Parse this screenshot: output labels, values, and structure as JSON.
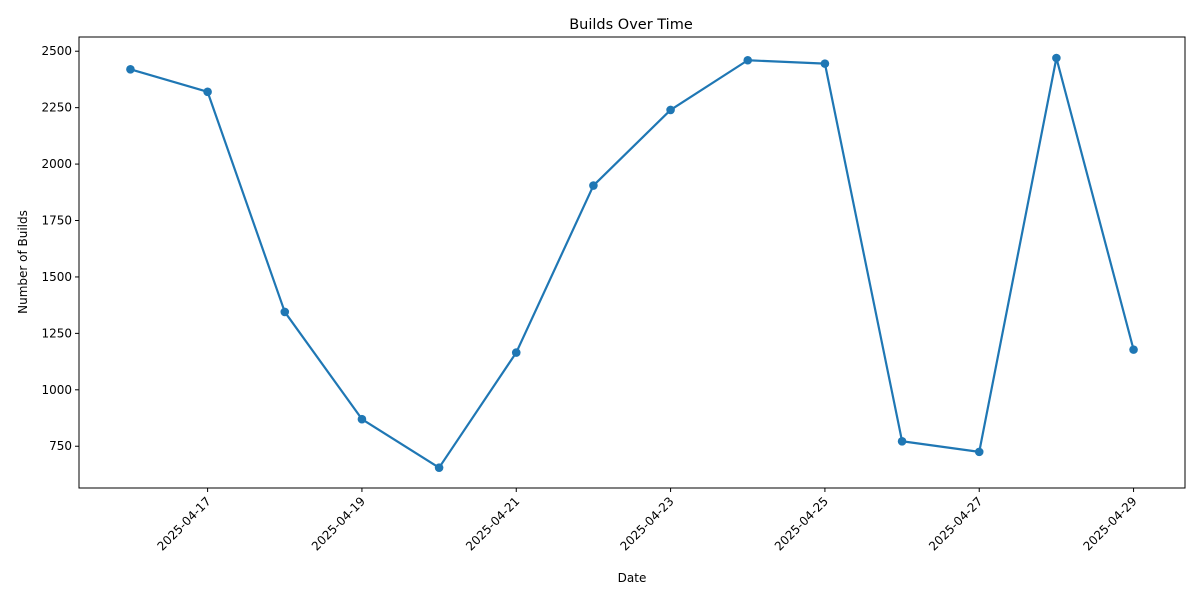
{
  "chart_data": {
    "type": "line",
    "title": "Builds Over Time",
    "xlabel": "Date",
    "ylabel": "Number of Builds",
    "x": [
      "2025-04-16",
      "2025-04-17",
      "2025-04-18",
      "2025-04-19",
      "2025-04-20",
      "2025-04-21",
      "2025-04-22",
      "2025-04-23",
      "2025-04-24",
      "2025-04-25",
      "2025-04-26",
      "2025-04-27",
      "2025-04-28",
      "2025-04-29"
    ],
    "series": [
      {
        "values": [
          2420,
          2320,
          1345,
          870,
          655,
          1165,
          1905,
          2240,
          2460,
          2445,
          772,
          725,
          2470,
          1178
        ]
      }
    ],
    "x_ticks": [
      "2025-04-17",
      "2025-04-19",
      "2025-04-21",
      "2025-04-23",
      "2025-04-25",
      "2025-04-27",
      "2025-04-29"
    ],
    "y_ticks": [
      750,
      1000,
      1250,
      1500,
      1750,
      2000,
      2250,
      2500
    ],
    "xlim": [
      "2025-04-15T08:00",
      "2025-04-29T16:00"
    ],
    "ylim": [
      565,
      2563
    ],
    "grid": false,
    "line_color": "#1f77b4",
    "marker": "circle"
  }
}
